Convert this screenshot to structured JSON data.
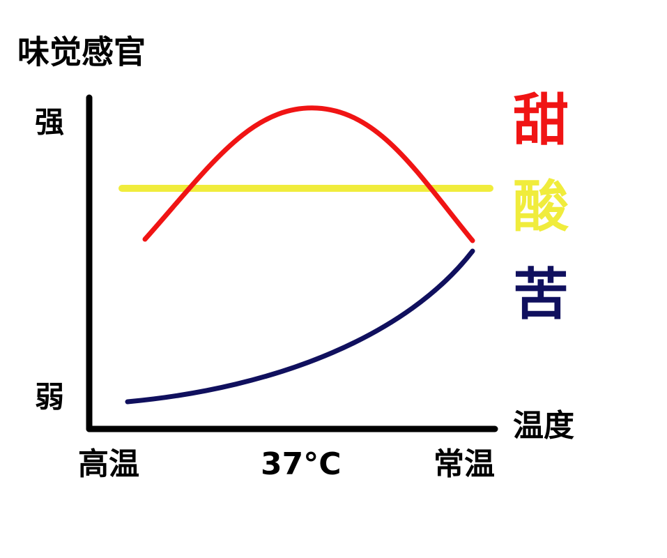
{
  "y_axis": {
    "title": "味觉感官",
    "high": "强",
    "low": "弱"
  },
  "x_axis": {
    "title": "温度",
    "labels": [
      "高温",
      "37°C",
      "常温"
    ]
  },
  "legend": [
    {
      "label": "甜",
      "color": "#f01414"
    },
    {
      "label": "酸",
      "color": "#f0ec3c"
    },
    {
      "label": "苦",
      "color": "#10105e"
    }
  ]
}
